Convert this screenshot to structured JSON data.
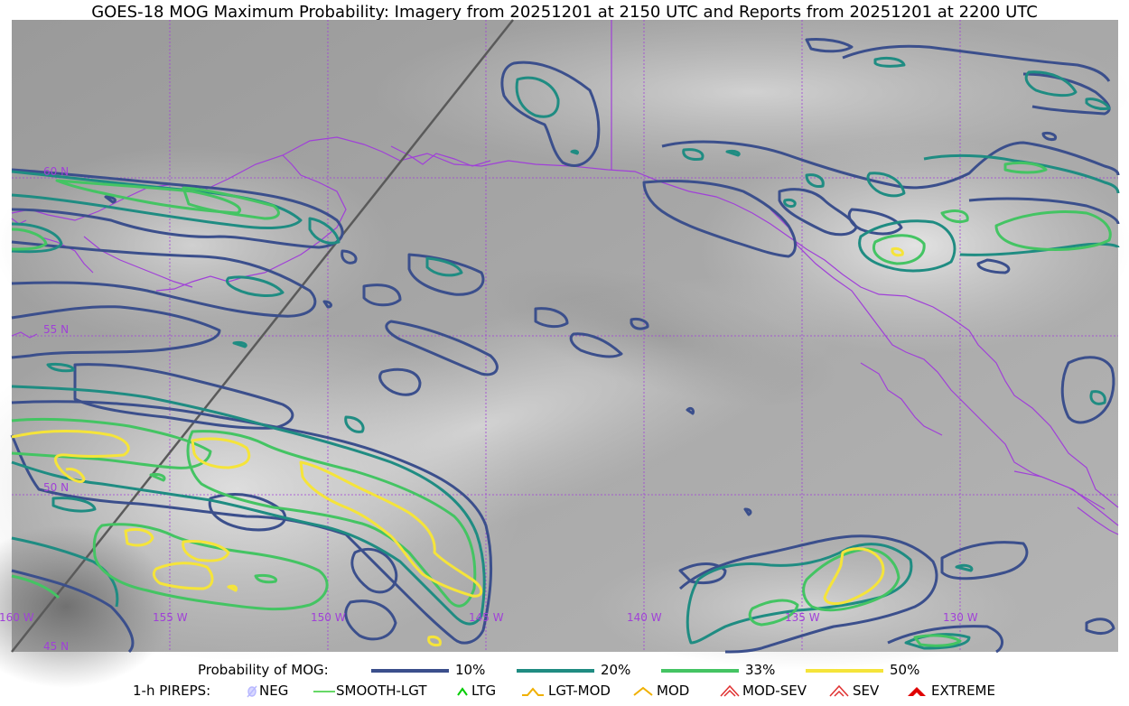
{
  "title": "GOES-18 MOG Maximum Probability: Imagery from 20251201 at 2150 UTC and Reports from 20251201 at 2200 UTC",
  "map": {
    "lat_labels": [
      "60 N",
      "55 N",
      "50 N",
      "45 N"
    ],
    "lon_labels": [
      "160 W",
      "155 W",
      "150 W",
      "145 W",
      "140 W",
      "135 W",
      "130 W"
    ],
    "colors": {
      "grid": "#a040d8",
      "coastline": "#a040d8",
      "p10": "#3b4f8c",
      "p20": "#1f8c82",
      "p33": "#44c463",
      "p50": "#f5e43a",
      "orbit_track": "#5a5a5a"
    }
  },
  "legend": {
    "probability_title": "Probability of MOG:",
    "levels": [
      {
        "label": "10%",
        "color": "#3b4f8c"
      },
      {
        "label": "20%",
        "color": "#1f8c82"
      },
      {
        "label": "33%",
        "color": "#44c463"
      },
      {
        "label": "50%",
        "color": "#f5e43a"
      }
    ],
    "pireps_title": "1-h PIREPS:",
    "pireps": [
      {
        "label": "NEG",
        "icon": "neg-pirep-icon",
        "color": "#b8b8ff"
      },
      {
        "label": "SMOOTH-LGT",
        "icon": "smooth-lgt-pirep-icon",
        "color": "#33cc33"
      },
      {
        "label": "LTG",
        "icon": "ltg-pirep-icon",
        "color": "#00cc00"
      },
      {
        "label": "LGT-MOD",
        "icon": "lgt-mod-pirep-icon",
        "color": "#f0b000"
      },
      {
        "label": "MOD",
        "icon": "mod-pirep-icon",
        "color": "#f0b000"
      },
      {
        "label": "MOD-SEV",
        "icon": "mod-sev-pirep-icon",
        "color": "#e03030"
      },
      {
        "label": "SEV",
        "icon": "sev-pirep-icon",
        "color": "#e03030"
      },
      {
        "label": "EXTREME",
        "icon": "extreme-pirep-icon",
        "color": "#e00000"
      }
    ]
  }
}
